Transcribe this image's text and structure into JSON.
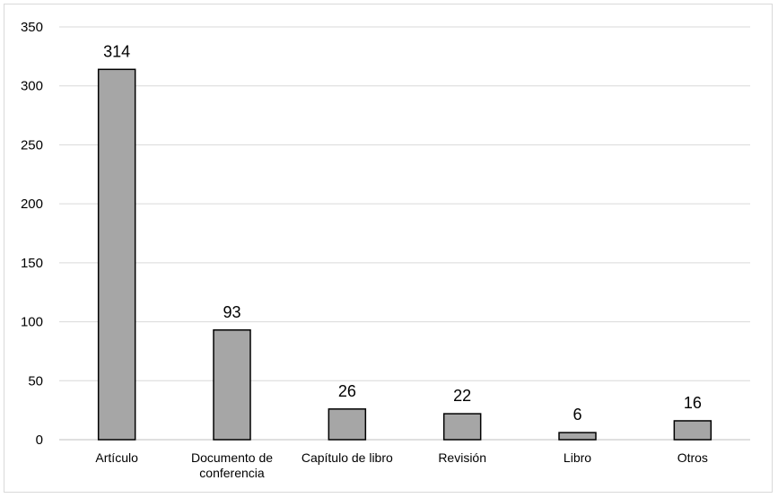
{
  "chart_data": {
    "type": "bar",
    "categories": [
      [
        "Artículo"
      ],
      [
        "Documento de",
        "conferencia"
      ],
      [
        "Capítulo de libro"
      ],
      [
        "Revisión"
      ],
      [
        "Libro"
      ],
      [
        "Otros"
      ]
    ],
    "values": [
      314,
      93,
      26,
      22,
      6,
      16
    ],
    "data_labels": [
      "314",
      "93",
      "26",
      "22",
      "6",
      "16"
    ],
    "yticks": [
      0,
      50,
      100,
      150,
      200,
      250,
      300,
      350
    ],
    "ylim": [
      0,
      350
    ],
    "title": "",
    "xlabel": "",
    "ylabel": "",
    "grid": true,
    "bar_color": "#a6a6a6",
    "bar_outline": "#000000",
    "grid_color": "#d9d9d9"
  }
}
